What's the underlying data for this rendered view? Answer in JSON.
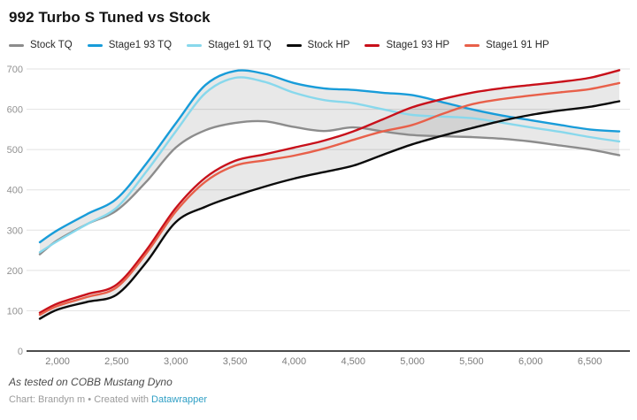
{
  "title": "992 Turbo S Tuned vs Stock",
  "footer": {
    "note": "As tested on COBB Mustang Dyno",
    "byline": "Chart: Brandyn m",
    "separator": "•",
    "created_text": "Created with",
    "link_label": "Datawrapper",
    "link_color": "#2f9fc5"
  },
  "chart_data": {
    "type": "line",
    "title": "992 Turbo S Tuned vs Stock",
    "xlabel": "",
    "ylabel": "",
    "ylim": [
      0,
      700
    ],
    "yticks": [
      0,
      100,
      200,
      300,
      400,
      500,
      600,
      700
    ],
    "xticks": [
      2000,
      2500,
      3000,
      3500,
      4000,
      4500,
      5000,
      5500,
      6000,
      6500
    ],
    "grid": true,
    "legend_position": "top",
    "x": [
      1850,
      2000,
      2250,
      2500,
      2750,
      3000,
      3250,
      3500,
      3750,
      4000,
      4250,
      4500,
      4750,
      5000,
      5250,
      5500,
      5750,
      6000,
      6250,
      6500,
      6750
    ],
    "series": [
      {
        "name": "Stock TQ",
        "color": "#8c8c8c",
        "values": [
          240,
          275,
          315,
          349,
          420,
          505,
          548,
          566,
          570,
          556,
          546,
          555,
          545,
          536,
          533,
          531,
          527,
          520,
          510,
          500,
          486
        ]
      },
      {
        "name": "Stage1 93 TQ",
        "color": "#189cd9",
        "values": [
          270,
          300,
          340,
          378,
          465,
          565,
          660,
          695,
          688,
          665,
          652,
          648,
          641,
          635,
          618,
          600,
          585,
          573,
          561,
          550,
          545
        ]
      },
      {
        "name": "Stage1 91 TQ",
        "color": "#88d8ec",
        "values": [
          245,
          273,
          315,
          356,
          445,
          545,
          640,
          678,
          668,
          641,
          623,
          615,
          600,
          586,
          582,
          578,
          567,
          555,
          544,
          531,
          520
        ]
      },
      {
        "name": "Stock HP",
        "color": "#0b0b0b",
        "values": [
          80,
          103,
          122,
          140,
          220,
          320,
          358,
          385,
          408,
          428,
          444,
          460,
          487,
          513,
          534,
          553,
          571,
          586,
          597,
          606,
          620
        ]
      },
      {
        "name": "Stage1 93 HP",
        "color": "#c8101a",
        "values": [
          95,
          118,
          141,
          165,
          250,
          355,
          430,
          472,
          488,
          505,
          522,
          545,
          575,
          605,
          625,
          641,
          652,
          660,
          668,
          678,
          697
        ]
      },
      {
        "name": "Stage1 91 HP",
        "color": "#e8604a",
        "values": [
          90,
          112,
          134,
          158,
          242,
          346,
          420,
          460,
          473,
          485,
          502,
          524,
          545,
          561,
          588,
          612,
          625,
          634,
          642,
          650,
          665
        ]
      }
    ],
    "bands": [
      {
        "top": "Stage1 93 TQ",
        "bottom": "Stock TQ"
      },
      {
        "top": "Stage1 93 HP",
        "bottom": "Stock HP"
      }
    ],
    "band_color": "rgba(0,0,0,0.09)"
  }
}
